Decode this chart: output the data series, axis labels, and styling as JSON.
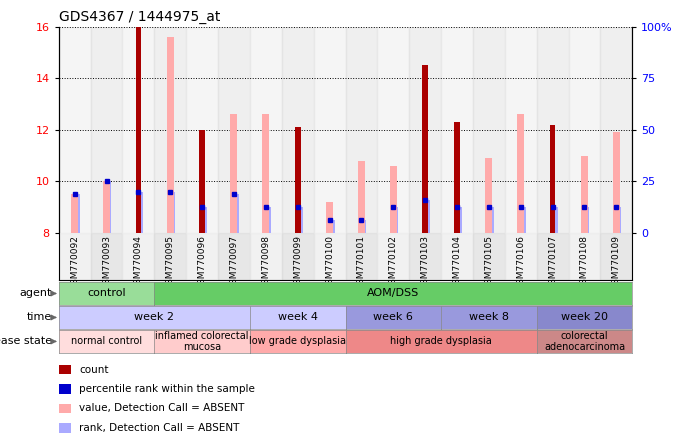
{
  "title": "GDS4367 / 1444975_at",
  "samples": [
    "GSM770092",
    "GSM770093",
    "GSM770094",
    "GSM770095",
    "GSM770096",
    "GSM770097",
    "GSM770098",
    "GSM770099",
    "GSM770100",
    "GSM770101",
    "GSM770102",
    "GSM770103",
    "GSM770104",
    "GSM770105",
    "GSM770106",
    "GSM770107",
    "GSM770108",
    "GSM770109"
  ],
  "count_values": [
    null,
    null,
    16.0,
    null,
    12.0,
    null,
    null,
    12.1,
    null,
    null,
    null,
    14.5,
    12.3,
    null,
    null,
    12.2,
    null,
    null
  ],
  "rank_values": [
    9.5,
    10.0,
    9.6,
    9.6,
    9.0,
    9.5,
    9.0,
    9.0,
    8.5,
    8.5,
    9.0,
    9.3,
    9.0,
    9.0,
    9.0,
    9.0,
    9.0,
    9.0
  ],
  "pink_bar_heights": [
    9.5,
    10.0,
    null,
    15.6,
    null,
    12.6,
    12.6,
    null,
    9.2,
    10.8,
    10.6,
    null,
    null,
    10.9,
    12.6,
    null,
    11.0,
    11.9
  ],
  "light_blue_bar_heights": [
    9.5,
    10.0,
    9.6,
    9.6,
    9.0,
    9.5,
    9.0,
    9.0,
    8.5,
    8.5,
    9.0,
    9.3,
    9.0,
    9.0,
    9.0,
    9.0,
    9.0,
    9.0
  ],
  "ylim_left": [
    8,
    16
  ],
  "ylim_right": [
    0,
    100
  ],
  "yticks_left": [
    8,
    10,
    12,
    14,
    16
  ],
  "yticks_right": [
    0,
    25,
    50,
    75,
    100
  ],
  "ytick_labels_right": [
    "0",
    "25",
    "50",
    "75",
    "100%"
  ],
  "agent_groups": [
    {
      "label": "control",
      "start": 0,
      "end": 3,
      "color": "#99dd99"
    },
    {
      "label": "AOM/DSS",
      "start": 3,
      "end": 18,
      "color": "#66cc66"
    }
  ],
  "time_groups": [
    {
      "label": "week 2",
      "start": 0,
      "end": 6,
      "color": "#ccccff"
    },
    {
      "label": "week 4",
      "start": 6,
      "end": 9,
      "color": "#ccccff"
    },
    {
      "label": "week 6",
      "start": 9,
      "end": 12,
      "color": "#9999dd"
    },
    {
      "label": "week 8",
      "start": 12,
      "end": 15,
      "color": "#9999dd"
    },
    {
      "label": "week 20",
      "start": 15,
      "end": 18,
      "color": "#8888cc"
    }
  ],
  "disease_groups": [
    {
      "label": "normal control",
      "start": 0,
      "end": 3,
      "color": "#ffdddd"
    },
    {
      "label": "inflamed colorectal\nmucosa",
      "start": 3,
      "end": 6,
      "color": "#ffcccc"
    },
    {
      "label": "low grade dysplasia",
      "start": 6,
      "end": 9,
      "color": "#ffaaaa"
    },
    {
      "label": "high grade dysplasia",
      "start": 9,
      "end": 15,
      "color": "#ee8888"
    },
    {
      "label": "colorectal\nadenocarcinoma",
      "start": 15,
      "end": 18,
      "color": "#cc8888"
    }
  ],
  "count_color": "#aa0000",
  "pink_color": "#ffaaaa",
  "blue_dot_color": "#0000cc",
  "light_blue_color": "#aaaaff",
  "legend_items": [
    {
      "color": "#aa0000",
      "label": "count",
      "shape": "square"
    },
    {
      "color": "#0000cc",
      "label": "percentile rank within the sample",
      "shape": "square"
    },
    {
      "color": "#ffaaaa",
      "label": "value, Detection Call = ABSENT",
      "shape": "square"
    },
    {
      "color": "#aaaaff",
      "label": "rank, Detection Call = ABSENT",
      "shape": "square"
    }
  ]
}
